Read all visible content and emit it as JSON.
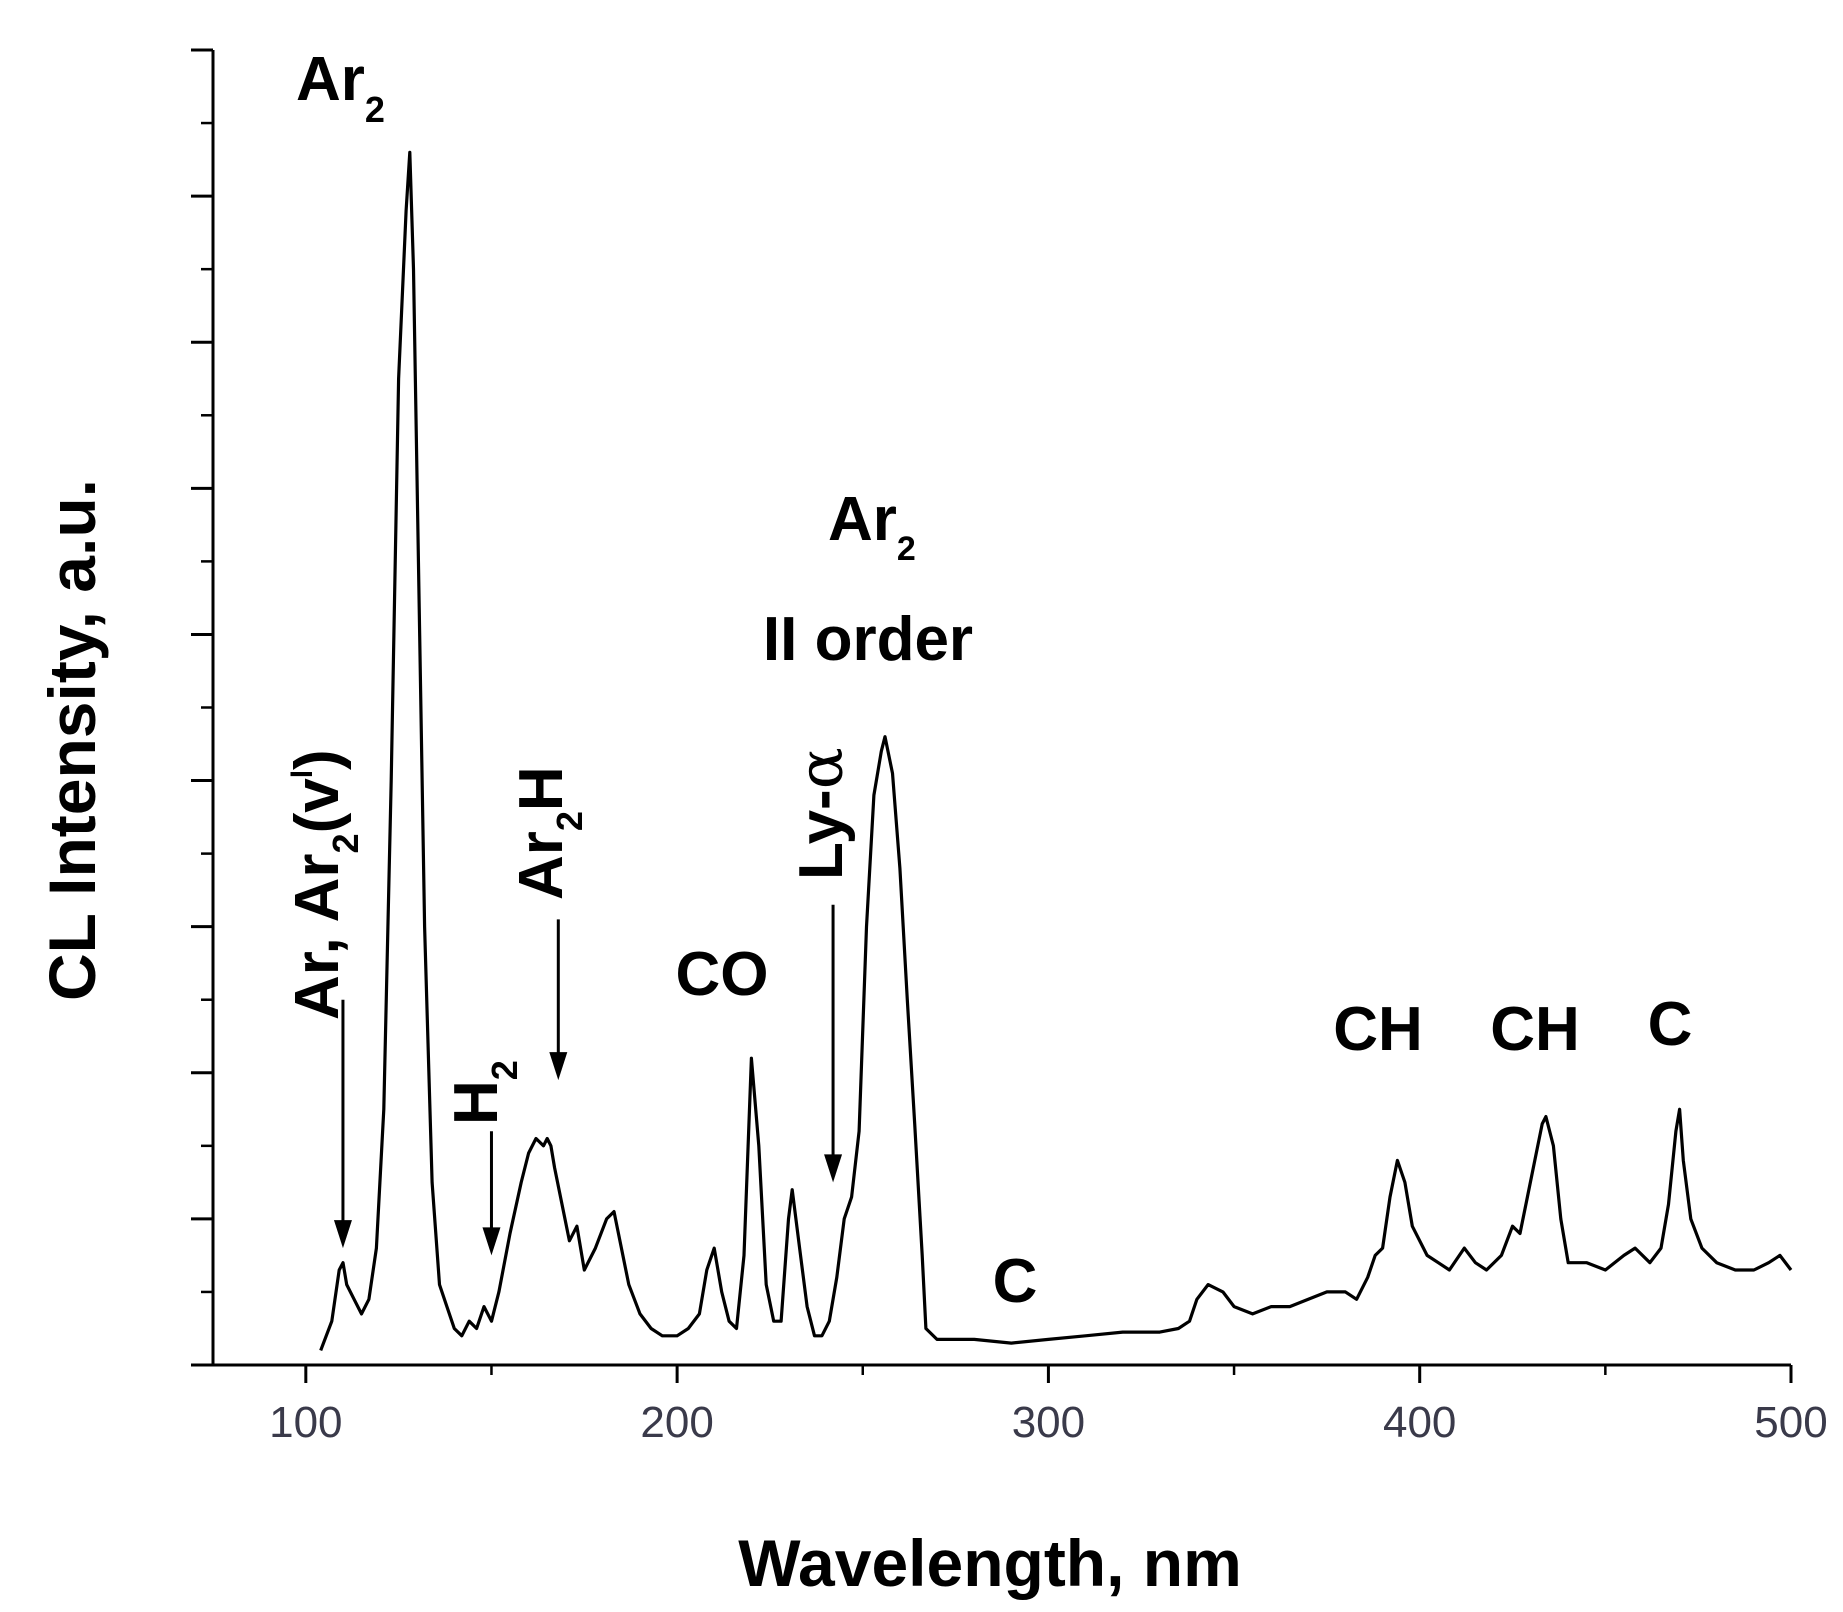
{
  "chart_data": {
    "type": "line",
    "title": "",
    "xlabel": "Wavelength, nm",
    "ylabel": "CL Intensity, a.u.",
    "xlim": [
      75,
      500
    ],
    "ylim": [
      0,
      18
    ],
    "xticks": [
      100,
      200,
      300,
      400,
      500
    ],
    "xtick_labels": [
      "100",
      "200",
      "300",
      "400",
      "500"
    ],
    "yticks_major_count": 9,
    "ytick_labels_shown": false,
    "grid": false,
    "legend": "none",
    "line_color": "#000000",
    "series": [
      {
        "x": [
          104,
          107,
          109,
          110,
          111,
          113,
          115,
          117,
          119,
          121,
          123,
          125,
          127,
          128,
          129,
          130,
          132,
          134,
          136,
          138,
          140,
          142,
          144,
          146,
          148,
          150,
          152,
          155,
          158,
          160,
          162,
          164,
          165,
          166,
          167,
          169,
          171,
          173,
          175,
          178,
          181,
          183,
          185,
          187,
          190,
          193,
          196,
          200,
          203,
          206,
          208,
          210,
          212,
          214,
          216,
          218,
          220,
          222,
          224,
          226,
          228,
          230,
          231,
          233,
          235,
          237,
          239,
          241,
          243,
          245,
          247,
          249,
          251,
          253,
          255,
          256,
          258,
          260,
          262,
          264,
          266,
          267,
          270,
          280,
          290,
          300,
          310,
          320,
          330,
          335,
          338,
          340,
          343,
          347,
          350,
          355,
          360,
          365,
          370,
          375,
          380,
          383,
          386,
          388,
          390,
          392,
          394,
          396,
          398,
          402,
          405,
          408,
          412,
          415,
          418,
          422,
          425,
          427,
          429,
          431,
          433,
          434,
          436,
          438,
          440,
          445,
          450,
          455,
          458,
          462,
          465,
          467,
          469,
          470,
          471,
          473,
          476,
          480,
          485,
          490,
          494,
          497,
          500
        ],
        "y": [
          0.2,
          0.6,
          1.3,
          1.4,
          1.1,
          0.9,
          0.7,
          0.9,
          1.6,
          3.5,
          8.0,
          13.5,
          15.8,
          16.6,
          15.0,
          12.0,
          6.0,
          2.5,
          1.1,
          0.8,
          0.5,
          0.4,
          0.6,
          0.5,
          0.8,
          0.6,
          1.0,
          1.8,
          2.5,
          2.9,
          3.1,
          3.0,
          3.1,
          3.0,
          2.7,
          2.2,
          1.7,
          1.9,
          1.3,
          1.6,
          2.0,
          2.1,
          1.6,
          1.1,
          0.7,
          0.5,
          0.4,
          0.4,
          0.5,
          0.7,
          1.3,
          1.6,
          1.0,
          0.6,
          0.5,
          1.5,
          4.2,
          3.0,
          1.1,
          0.6,
          0.6,
          2.0,
          2.4,
          1.6,
          0.8,
          0.4,
          0.4,
          0.6,
          1.2,
          2.0,
          2.3,
          3.2,
          6.0,
          7.8,
          8.4,
          8.6,
          8.1,
          6.8,
          5.0,
          3.3,
          1.5,
          0.5,
          0.35,
          0.35,
          0.3,
          0.35,
          0.4,
          0.45,
          0.45,
          0.5,
          0.6,
          0.9,
          1.1,
          1.0,
          0.8,
          0.7,
          0.8,
          0.8,
          0.9,
          1.0,
          1.0,
          0.9,
          1.2,
          1.5,
          1.6,
          2.3,
          2.8,
          2.5,
          1.9,
          1.5,
          1.4,
          1.3,
          1.6,
          1.4,
          1.3,
          1.5,
          1.9,
          1.8,
          2.3,
          2.8,
          3.3,
          3.4,
          3.0,
          2.0,
          1.4,
          1.4,
          1.3,
          1.5,
          1.6,
          1.4,
          1.6,
          2.2,
          3.2,
          3.5,
          2.8,
          2.0,
          1.6,
          1.4,
          1.3,
          1.3,
          1.4,
          1.5,
          1.3
        ]
      }
    ],
    "annotations": [
      {
        "id": "ar2-main",
        "text": "Ar",
        "sub": "2"
      },
      {
        "id": "ar-ar2v",
        "text": "Ar, Ar",
        "sub": "2",
        "after": "(v",
        "sup": "l",
        "tail": ")",
        "rotated": true
      },
      {
        "id": "h2",
        "text": "H",
        "sub": "2",
        "rotated": true
      },
      {
        "id": "ar2h",
        "text": "Ar",
        "sub": "2",
        "after": "H",
        "rotated": true
      },
      {
        "id": "co",
        "text": "CO"
      },
      {
        "id": "ly-alpha",
        "text": "Ly-",
        "greek": "α",
        "rotated": true
      },
      {
        "id": "ar2-second",
        "text": "Ar",
        "sub": "2"
      },
      {
        "id": "ii-order",
        "text": "II order"
      },
      {
        "id": "c-300",
        "text": "C"
      },
      {
        "id": "ch-395",
        "text": "CH"
      },
      {
        "id": "ch-435",
        "text": "CH"
      },
      {
        "id": "c-470",
        "text": "C"
      }
    ],
    "arrows": [
      {
        "id": "arrow-ar",
        "x": 110,
        "y_from": 5.0,
        "y_to": 1.6
      },
      {
        "id": "arrow-h2",
        "x": 150,
        "y_from": 3.2,
        "y_to": 1.5
      },
      {
        "id": "arrow-ar2h",
        "x": 168,
        "y_from": 6.1,
        "y_to": 3.9
      },
      {
        "id": "arrow-ly",
        "x": 242,
        "y_from": 6.3,
        "y_to": 2.5
      }
    ]
  }
}
